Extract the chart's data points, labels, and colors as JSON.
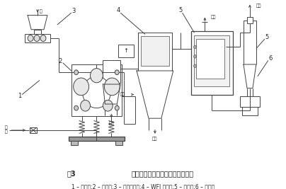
{
  "title_label": "图3",
  "title_text": "振动磨与超细分级机闭路粉碎工艺",
  "caption": "1 – 混合器;2 – 振动磨;3 – 螺旋加料器;4 – WFJ 分级机;5 – 捕集器;6 – 引风机",
  "bg_color": "#ffffff",
  "fig_width": 4.04,
  "fig_height": 2.67,
  "dpi": 100,
  "line_color": "#444444",
  "text_color": "#222222"
}
